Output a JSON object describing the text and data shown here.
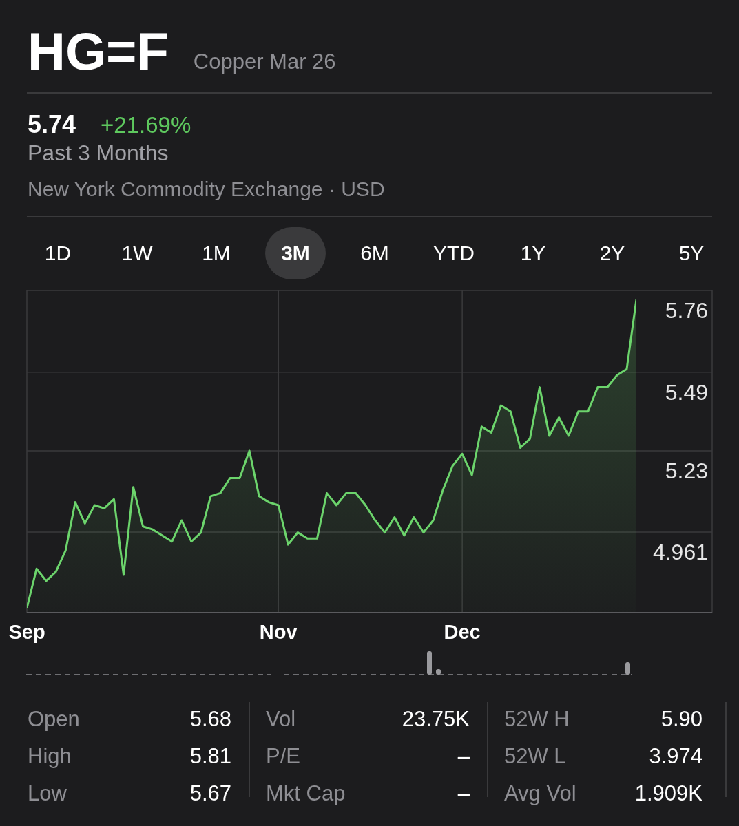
{
  "chart_data": {
    "type": "area",
    "title": "HG=F",
    "subtitle": "Copper Mar 26",
    "annotations": [
      "5.74",
      "+21.69%",
      "Past 3 Months",
      "New York Commodity Exchange · USD",
      "1D",
      "1W",
      "1M",
      "3M",
      "6M",
      "YTD",
      "1Y",
      "2Y",
      "5Y",
      "Open",
      "5.68",
      "High",
      "5.81",
      "Low",
      "5.67",
      "Vol",
      "23.75K",
      "P/E",
      "–",
      "Mkt Cap",
      "–",
      "52W H",
      "5.90",
      "52W L",
      "3.974",
      "Avg Vol",
      "1.909K"
    ],
    "categories": [
      "Sep",
      null,
      null,
      null,
      null,
      null,
      null,
      null,
      null,
      null,
      null,
      null,
      null,
      null,
      null,
      null,
      null,
      null,
      null,
      null,
      null,
      null,
      null,
      null,
      null,
      null,
      "Nov",
      null,
      null,
      null,
      null,
      null,
      null,
      null,
      null,
      null,
      null,
      null,
      null,
      null,
      null,
      null,
      null,
      null,
      null,
      "Dec",
      null,
      null,
      null,
      null,
      null,
      null,
      null,
      null,
      null,
      null,
      null,
      null,
      null,
      null,
      null,
      null,
      null,
      null
    ],
    "series": [
      {
        "color": "#6cd46c",
        "values": [
          4.71,
          4.84,
          4.8,
          4.83,
          4.9,
          5.06,
          4.99,
          5.05,
          5.04,
          5.07,
          4.82,
          5.11,
          4.98,
          4.97,
          4.95,
          4.93,
          5.0,
          4.93,
          4.96,
          5.08,
          5.09,
          5.14,
          5.14,
          5.23,
          5.08,
          5.06,
          5.05,
          4.92,
          4.96,
          4.94,
          4.94,
          5.09,
          5.05,
          5.09,
          5.09,
          5.05,
          5.0,
          4.96,
          5.01,
          4.95,
          5.01,
          4.96,
          5.0,
          5.1,
          5.18,
          5.22,
          5.15,
          5.31,
          5.29,
          5.38,
          5.36,
          5.24,
          5.27,
          5.44,
          5.28,
          5.34,
          5.28,
          5.36,
          5.36,
          5.44,
          5.44,
          5.48,
          5.5,
          5.73
        ]
      }
    ],
    "ylim": [
      4.695,
      5.76
    ],
    "yticks": [
      4.961,
      5.23,
      5.49,
      5.76
    ],
    "grid": true
  }
}
